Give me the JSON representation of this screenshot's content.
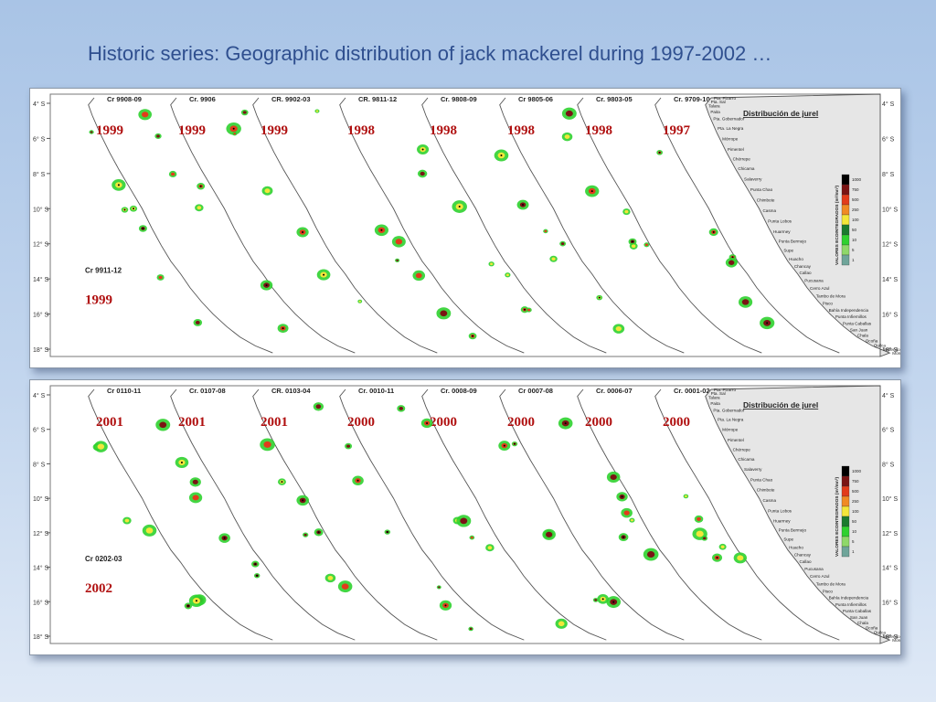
{
  "title": "Historic series: Geographic distribution of jack mackerel during 1997-2002 …",
  "legend": {
    "title": "Distribución de jurel",
    "axis_label": "VALORES ECOINTEGRADOS (m²/mn²)",
    "ticks": [
      "1000",
      "750",
      "500",
      "250",
      "100",
      "50",
      "10",
      "5",
      "1"
    ],
    "colors": [
      "#000000",
      "#7a1414",
      "#e23b1b",
      "#f08a24",
      "#f3e63a",
      "#1a7a2e",
      "#2fd12f",
      "#8fd86a",
      "#6fa59a"
    ]
  },
  "top_panel": {
    "lat_labels": [
      "4° S",
      "6° S",
      "8° S",
      "10° S",
      "12° S",
      "14° S",
      "16° S",
      "18° S"
    ],
    "cruises": [
      {
        "label": "Cr 9908-09",
        "year": "1999"
      },
      {
        "label": "Cr. 9906",
        "year": "1999"
      },
      {
        "label": "CR. 9902-03",
        "year": "1999"
      },
      {
        "label": "CR. 9811-12",
        "year": "1998"
      },
      {
        "label": "Cr. 9808-09",
        "year": "1998"
      },
      {
        "label": "Cr 9805-06",
        "year": "1998"
      },
      {
        "label": "Cr. 9803-05",
        "year": "1998"
      },
      {
        "label": "Cr. 9709-10",
        "year": "1997"
      }
    ],
    "extra_cruise": {
      "label": "Cr 9911-12",
      "year": "1999"
    },
    "place_names": [
      "Pta. Pizarro",
      "Pta. Sal",
      "Talara",
      "Paita",
      "Pta. Gobernador",
      "Pta. La Negra",
      "Mórrope",
      "Pimentel",
      "Chérrepe",
      "Chicama",
      "Salaverry",
      "Punta Chao",
      "Chimbote",
      "Casma",
      "Punta Lobos",
      "Huarmey",
      "Punta Bermejo",
      "Supe",
      "Huacho",
      "Chancay",
      "Callao",
      "Pucusana",
      "Cerro Azul",
      "Tambo de Mora",
      "Pisco",
      "Bahía Independencia",
      "Punta Infiernillos",
      "Punta Caballas",
      "San Juan",
      "Chala",
      "Ocoña",
      "Quilca",
      "Mollendo",
      "Morro Sama"
    ]
  },
  "bottom_panel": {
    "lat_labels": [
      "4° S",
      "6° S",
      "8° S",
      "10° S",
      "12° S",
      "14° S",
      "16° S",
      "18° S"
    ],
    "cruises": [
      {
        "label": "Cr 0110-11",
        "year": "2001"
      },
      {
        "label": "Cr. 0107-08",
        "year": "2001"
      },
      {
        "label": "CR. 0103-04",
        "year": "2001"
      },
      {
        "label": "Cr. 0010-11",
        "year": "2000"
      },
      {
        "label": "Cr. 0008-09",
        "year": "2000"
      },
      {
        "label": "Cr 0007-08",
        "year": "2000"
      },
      {
        "label": "Cr. 0006-07",
        "year": "2000"
      },
      {
        "label": "Cr. 0001-02",
        "year": "2000"
      }
    ],
    "extra_cruise": {
      "label": "Cr 0202-03",
      "year": "2002"
    },
    "place_names": [
      "Pta. Pizarro",
      "Pta. Sal",
      "Talara",
      "Paita",
      "Pta. Gobernador",
      "Pta. La Negra",
      "Mórrope",
      "Pimentel",
      "Chérrepe",
      "Chicama",
      "Salaverry",
      "Punta Chao",
      "Chimbote",
      "Casma",
      "Punta Lobos",
      "Huarmey",
      "Punta Bermejo",
      "Supe",
      "Huacho",
      "Chancay",
      "Callao",
      "Pucusana",
      "Cerro Azul",
      "Tambo de Mora",
      "Pisco",
      "Bahía Independencia",
      "Punta Infiernillos",
      "Punta Caballas",
      "San Juan",
      "Chala",
      "Ocoña",
      "Quilca",
      "Mollendo",
      "Morro Sama"
    ]
  }
}
